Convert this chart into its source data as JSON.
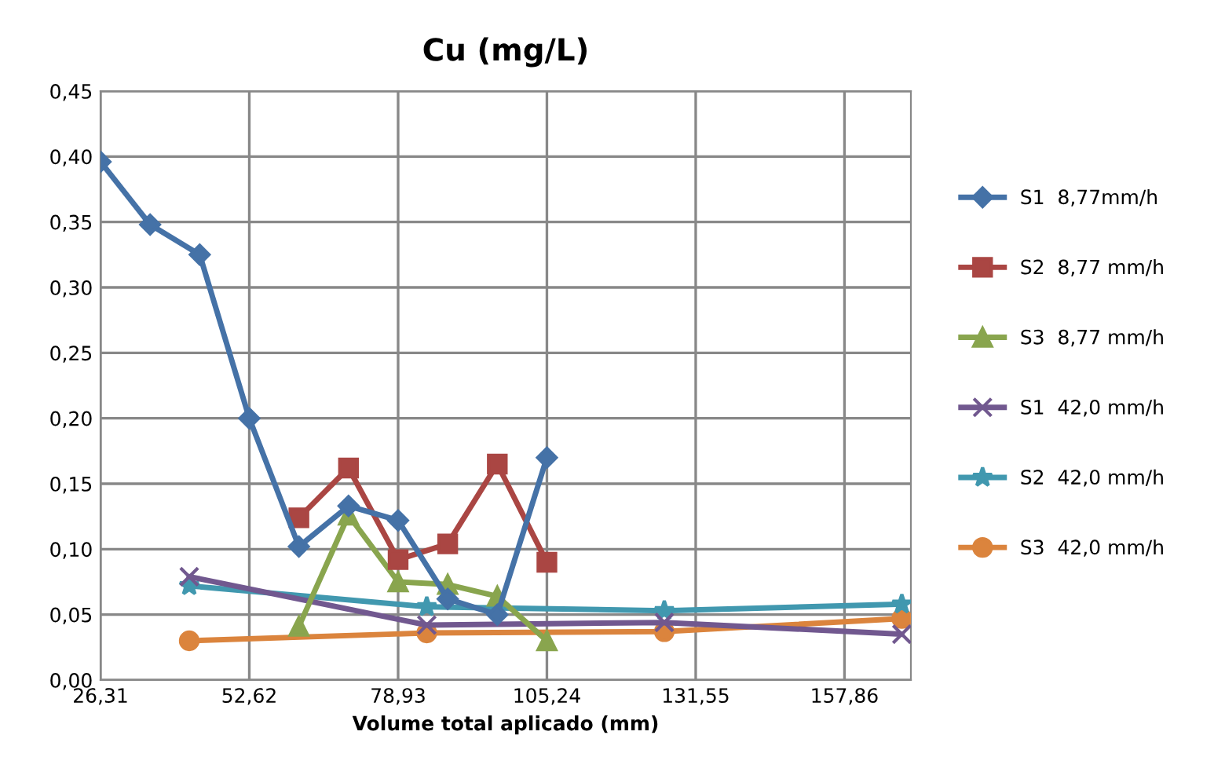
{
  "chart_data": {
    "type": "line",
    "title": "Cu (mg/L)",
    "xlabel": "Volume total aplicado (mm)",
    "xlim": [
      26.31,
      169.6
    ],
    "ylim": [
      0,
      0.45
    ],
    "xticks": [
      {
        "value": 26.31,
        "label": "26,31"
      },
      {
        "value": 52.62,
        "label": "52,62"
      },
      {
        "value": 78.93,
        "label": "78,93"
      },
      {
        "value": 105.24,
        "label": "105,24"
      },
      {
        "value": 131.55,
        "label": "131,55"
      },
      {
        "value": 157.86,
        "label": "157,86"
      }
    ],
    "yticks": [
      {
        "value": 0,
        "label": "0,00"
      },
      {
        "value": 0.05,
        "label": "0,05"
      },
      {
        "value": 0.1,
        "label": "0,10"
      },
      {
        "value": 0.15,
        "label": "0,15"
      },
      {
        "value": 0.2,
        "label": "0,20"
      },
      {
        "value": 0.25,
        "label": "0,25"
      },
      {
        "value": 0.3,
        "label": "0,30"
      },
      {
        "value": 0.35,
        "label": "0,35"
      },
      {
        "value": 0.4,
        "label": "0,40"
      },
      {
        "value": 0.45,
        "label": "0,45"
      }
    ],
    "grid": true,
    "legend": "right",
    "series": [
      {
        "name": "S1  8,77mm/h",
        "color": "#4572a7",
        "marker": "diamond",
        "x": [
          26.31,
          35.08,
          43.85,
          52.62,
          61.39,
          70.16,
          78.93,
          87.7,
          96.47,
          105.24
        ],
        "values": [
          0.396,
          0.348,
          0.325,
          0.2,
          0.102,
          0.133,
          0.122,
          0.062,
          0.05,
          0.17
        ]
      },
      {
        "name": "S2  8,77 mm/h",
        "color": "#aa4643",
        "marker": "square",
        "x": [
          61.39,
          70.16,
          78.93,
          87.7,
          96.47,
          105.24
        ],
        "values": [
          0.124,
          0.162,
          0.092,
          0.104,
          0.165,
          0.09
        ]
      },
      {
        "name": "S3  8,77 mm/h",
        "color": "#89a54e",
        "marker": "triangle",
        "x": [
          61.39,
          70.16,
          78.93,
          87.7,
          96.47,
          105.24
        ],
        "values": [
          0.041,
          0.126,
          0.075,
          0.073,
          0.064,
          0.03
        ]
      },
      {
        "name": "S1  42,0 mm/h",
        "color": "#71588f",
        "marker": "cross",
        "x": [
          42.0,
          84.0,
          126.0,
          168.0
        ],
        "values": [
          0.079,
          0.042,
          0.044,
          0.035
        ]
      },
      {
        "name": "S2  42,0 mm/h",
        "color": "#4198af",
        "marker": "star",
        "x": [
          42.0,
          84.0,
          126.0,
          168.0
        ],
        "values": [
          0.072,
          0.056,
          0.053,
          0.058
        ]
      },
      {
        "name": "S3  42,0 mm/h",
        "color": "#db843d",
        "marker": "circle",
        "x": [
          42.0,
          84.0,
          126.0,
          168.0
        ],
        "values": [
          0.03,
          0.036,
          0.037,
          0.047
        ]
      }
    ]
  }
}
